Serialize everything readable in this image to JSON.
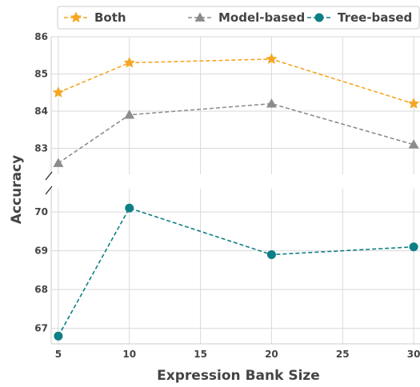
{
  "chart_data": {
    "type": "line",
    "xlabel": "Expression Bank Size",
    "ylabel": "Accuracy",
    "x": [
      5,
      10,
      20,
      30
    ],
    "x_ticks": [
      "5",
      "10",
      "15",
      "20",
      "25",
      "30"
    ],
    "xlim": [
      4.5,
      30.5
    ],
    "y_axis_broken": true,
    "upper_panel": {
      "ylim": [
        82.3,
        86
      ],
      "y_ticks": [
        "83",
        "84",
        "85",
        "86"
      ]
    },
    "lower_panel": {
      "ylim": [
        66.6,
        70.6
      ],
      "y_ticks": [
        "67",
        "68",
        "69",
        "70"
      ]
    },
    "grid": true,
    "legend_position": "top",
    "series": [
      {
        "name": "Both",
        "values": [
          84.5,
          85.3,
          85.4,
          84.2
        ],
        "color": "#f5a623",
        "marker": "star",
        "panel": "upper"
      },
      {
        "name": "Model-based",
        "values": [
          82.6,
          83.9,
          84.2,
          83.1
        ],
        "color": "#8c8c8c",
        "marker": "triangle",
        "panel": "upper"
      },
      {
        "name": "Tree-based",
        "values": [
          66.8,
          70.1,
          68.9,
          69.1
        ],
        "color": "#0e7f86",
        "marker": "circle",
        "panel": "lower"
      }
    ]
  }
}
